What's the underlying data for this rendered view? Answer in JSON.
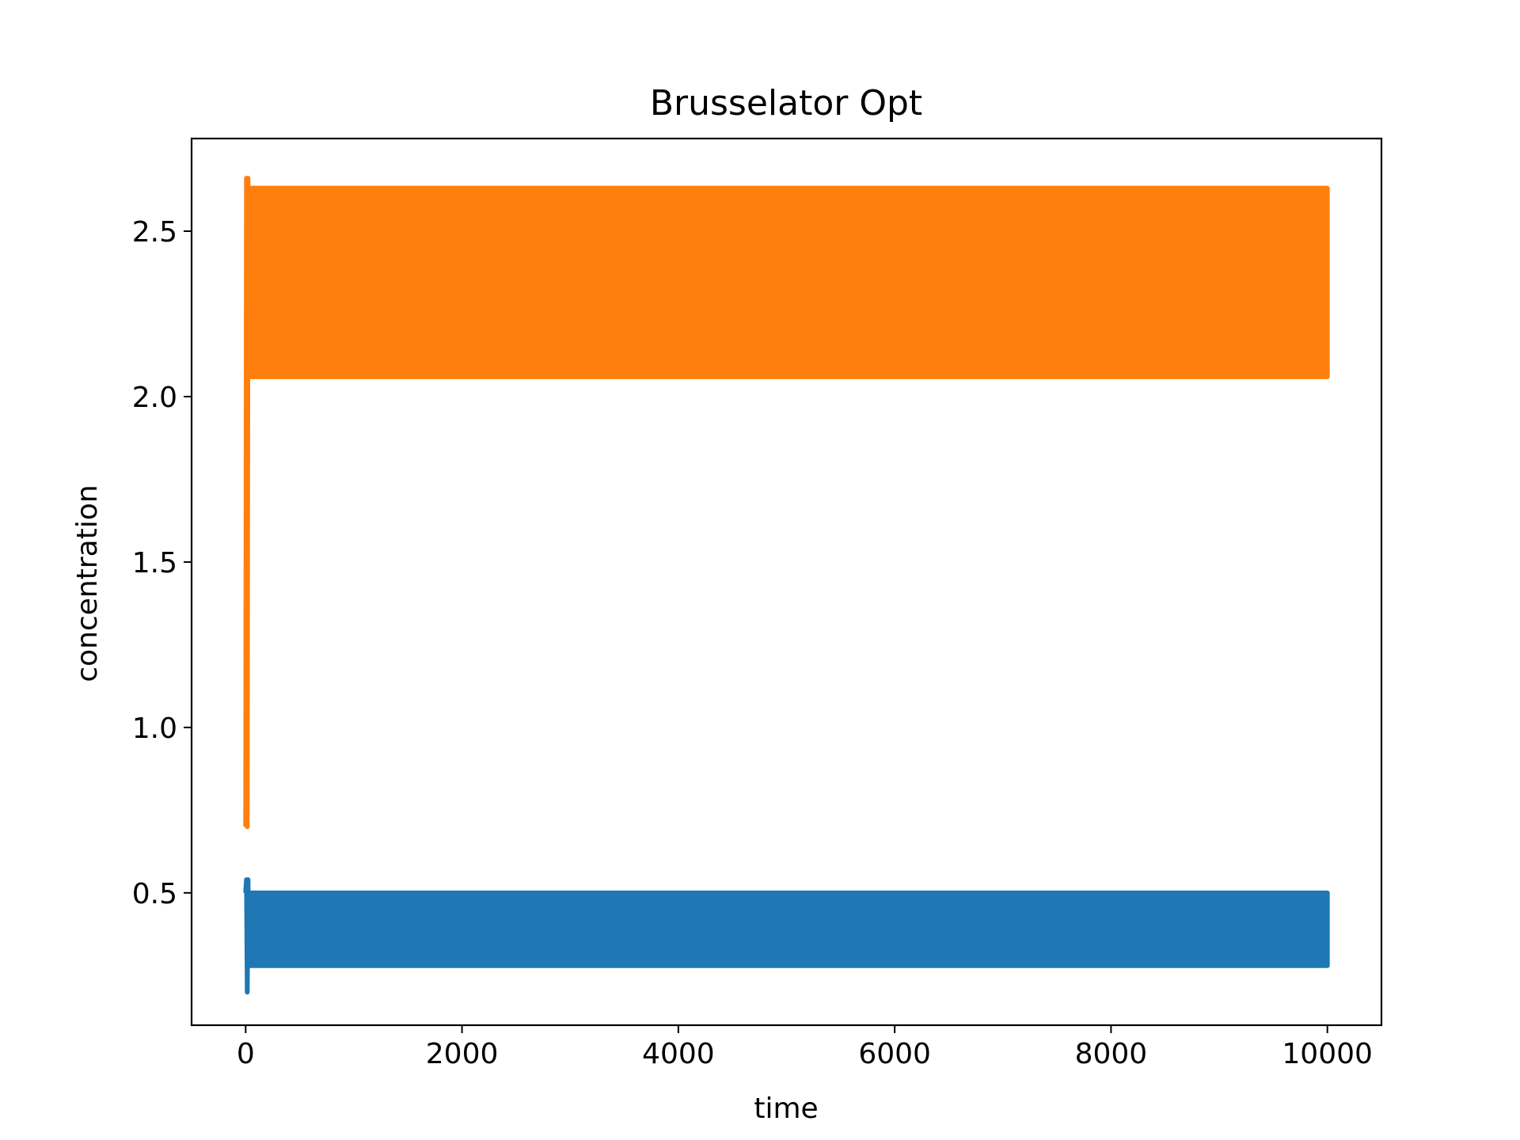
{
  "chart_data": {
    "type": "line",
    "title": "Brusselator Opt",
    "xlabel": "time",
    "ylabel": "concentration",
    "xlim": [
      -500,
      10500
    ],
    "ylim": [
      0.1,
      2.78
    ],
    "xticks": [
      0,
      2000,
      4000,
      6000,
      8000,
      10000
    ],
    "xtick_labels": [
      "0",
      "2000",
      "4000",
      "6000",
      "8000",
      "10000"
    ],
    "yticks": [
      0.5,
      1.0,
      1.5,
      2.0,
      2.5
    ],
    "ytick_labels": [
      "0.5",
      "1.0",
      "1.5",
      "2.0",
      "2.5"
    ],
    "grid": false,
    "legend": "none",
    "series": [
      {
        "color": "#1f77b4",
        "t_start": 0,
        "t_end": 10000,
        "initial_value": 0.5,
        "transient_min": 0.2,
        "transient_max": 0.54,
        "steady_min": 0.28,
        "steady_max": 0.5
      },
      {
        "color": "#ff7f0e",
        "t_start": 0,
        "t_end": 10000,
        "initial_value": 0.7,
        "transient_min": 0.7,
        "transient_max": 2.66,
        "steady_min": 2.06,
        "steady_max": 2.63
      }
    ]
  }
}
